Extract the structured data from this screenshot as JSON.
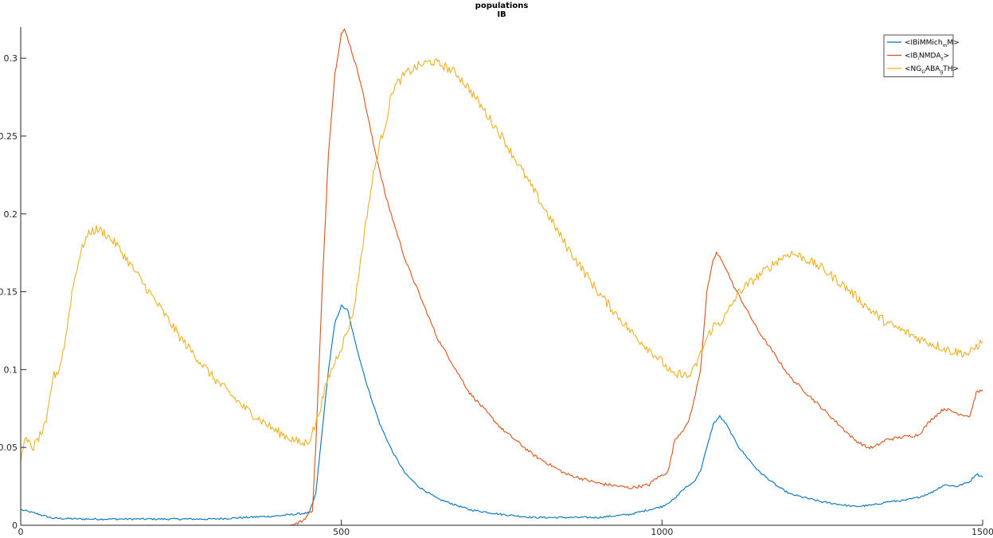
{
  "chart_data": {
    "type": "line",
    "title": [
      "populations",
      "IB"
    ],
    "xlabel": "",
    "ylabel": "",
    "xlim": [
      0,
      1500
    ],
    "ylim": [
      0,
      0.32
    ],
    "xticks": [
      0,
      500,
      1000,
      1500
    ],
    "xtick_labels": [
      "0",
      "500",
      "1000",
      "1500"
    ],
    "yticks": [
      0,
      0.05,
      0.1,
      0.15,
      0.2,
      0.25,
      0.3
    ],
    "ytick_labels": [
      "0",
      "0.05",
      "0.1",
      "0.15",
      "0.2",
      "0.25",
      "0.3"
    ],
    "grid": false,
    "legend_position": "top-right",
    "series": [
      {
        "name": "<IBiMMich_m M>",
        "legend": {
          "pre": "<IBiMMich",
          "sub": "m",
          "post": "M>"
        },
        "color": "#0072BD",
        "noise": 0.0006,
        "points": [
          [
            0,
            0.01
          ],
          [
            20,
            0.008
          ],
          [
            50,
            0.0045
          ],
          [
            100,
            0.004
          ],
          [
            200,
            0.004
          ],
          [
            300,
            0.004
          ],
          [
            400,
            0.006
          ],
          [
            450,
            0.008
          ],
          [
            460,
            0.02
          ],
          [
            470,
            0.06
          ],
          [
            480,
            0.1
          ],
          [
            490,
            0.13
          ],
          [
            500,
            0.141
          ],
          [
            510,
            0.138
          ],
          [
            520,
            0.12
          ],
          [
            540,
            0.09
          ],
          [
            560,
            0.065
          ],
          [
            580,
            0.047
          ],
          [
            600,
            0.033
          ],
          [
            620,
            0.025
          ],
          [
            650,
            0.017
          ],
          [
            700,
            0.01
          ],
          [
            750,
            0.007
          ],
          [
            800,
            0.005
          ],
          [
            850,
            0.005
          ],
          [
            900,
            0.005
          ],
          [
            950,
            0.007
          ],
          [
            1000,
            0.012
          ],
          [
            1020,
            0.017
          ],
          [
            1030,
            0.022
          ],
          [
            1050,
            0.028
          ],
          [
            1060,
            0.035
          ],
          [
            1070,
            0.05
          ],
          [
            1080,
            0.065
          ],
          [
            1090,
            0.07
          ],
          [
            1100,
            0.065
          ],
          [
            1120,
            0.05
          ],
          [
            1150,
            0.035
          ],
          [
            1180,
            0.025
          ],
          [
            1200,
            0.02
          ],
          [
            1250,
            0.015
          ],
          [
            1300,
            0.012
          ],
          [
            1330,
            0.013
          ],
          [
            1350,
            0.015
          ],
          [
            1380,
            0.016
          ],
          [
            1400,
            0.018
          ],
          [
            1420,
            0.021
          ],
          [
            1440,
            0.026
          ],
          [
            1460,
            0.025
          ],
          [
            1480,
            0.028
          ],
          [
            1490,
            0.033
          ],
          [
            1500,
            0.031
          ]
        ]
      },
      {
        "name": "<IB_i NMDA_s>",
        "legend": {
          "pre": "<IB",
          "sub": "i",
          "post": "NMDA",
          "sub2": "s",
          "post2": ">"
        },
        "color": "#D95319",
        "noise": 0.001,
        "points": [
          [
            0,
            0
          ],
          [
            420,
            0
          ],
          [
            430,
            0.001
          ],
          [
            440,
            0.003
          ],
          [
            455,
            0.01
          ],
          [
            460,
            0.05
          ],
          [
            470,
            0.15
          ],
          [
            480,
            0.24
          ],
          [
            490,
            0.29
          ],
          [
            500,
            0.316
          ],
          [
            505,
            0.318
          ],
          [
            510,
            0.313
          ],
          [
            530,
            0.285
          ],
          [
            550,
            0.245
          ],
          [
            570,
            0.21
          ],
          [
            600,
            0.17
          ],
          [
            650,
            0.12
          ],
          [
            700,
            0.085
          ],
          [
            750,
            0.062
          ],
          [
            800,
            0.045
          ],
          [
            850,
            0.033
          ],
          [
            900,
            0.027
          ],
          [
            950,
            0.024
          ],
          [
            980,
            0.026
          ],
          [
            990,
            0.03
          ],
          [
            1000,
            0.032
          ],
          [
            1010,
            0.035
          ],
          [
            1020,
            0.055
          ],
          [
            1030,
            0.06
          ],
          [
            1040,
            0.065
          ],
          [
            1050,
            0.08
          ],
          [
            1060,
            0.1
          ],
          [
            1070,
            0.15
          ],
          [
            1080,
            0.17
          ],
          [
            1085,
            0.175
          ],
          [
            1090,
            0.172
          ],
          [
            1100,
            0.165
          ],
          [
            1110,
            0.155
          ],
          [
            1150,
            0.125
          ],
          [
            1200,
            0.095
          ],
          [
            1250,
            0.075
          ],
          [
            1300,
            0.055
          ],
          [
            1320,
            0.05
          ],
          [
            1330,
            0.05
          ],
          [
            1350,
            0.055
          ],
          [
            1380,
            0.057
          ],
          [
            1400,
            0.058
          ],
          [
            1420,
            0.068
          ],
          [
            1440,
            0.075
          ],
          [
            1460,
            0.072
          ],
          [
            1480,
            0.07
          ],
          [
            1490,
            0.085
          ],
          [
            1500,
            0.087
          ]
        ]
      },
      {
        "name": "<NG_GABA_g TH>",
        "legend": {
          "pre": "<NG",
          "sub": "G",
          "post": "ABA",
          "sub2": "g",
          "post2": "TH>"
        },
        "color": "#EDB120",
        "noise": 0.003,
        "points": [
          [
            0,
            0.04
          ],
          [
            5,
            0.055
          ],
          [
            20,
            0.05
          ],
          [
            40,
            0.065
          ],
          [
            50,
            0.095
          ],
          [
            60,
            0.1
          ],
          [
            70,
            0.12
          ],
          [
            80,
            0.15
          ],
          [
            90,
            0.17
          ],
          [
            100,
            0.183
          ],
          [
            110,
            0.189
          ],
          [
            120,
            0.19
          ],
          [
            130,
            0.188
          ],
          [
            150,
            0.18
          ],
          [
            200,
            0.15
          ],
          [
            250,
            0.12
          ],
          [
            300,
            0.095
          ],
          [
            350,
            0.075
          ],
          [
            400,
            0.06
          ],
          [
            440,
            0.052
          ],
          [
            450,
            0.055
          ],
          [
            460,
            0.065
          ],
          [
            470,
            0.08
          ],
          [
            480,
            0.095
          ],
          [
            490,
            0.105
          ],
          [
            500,
            0.115
          ],
          [
            510,
            0.125
          ],
          [
            520,
            0.14
          ],
          [
            530,
            0.17
          ],
          [
            540,
            0.2
          ],
          [
            550,
            0.225
          ],
          [
            560,
            0.245
          ],
          [
            570,
            0.26
          ],
          [
            580,
            0.28
          ],
          [
            590,
            0.285
          ],
          [
            600,
            0.29
          ],
          [
            620,
            0.295
          ],
          [
            640,
            0.298
          ],
          [
            660,
            0.295
          ],
          [
            680,
            0.29
          ],
          [
            700,
            0.28
          ],
          [
            750,
            0.25
          ],
          [
            800,
            0.215
          ],
          [
            850,
            0.18
          ],
          [
            900,
            0.15
          ],
          [
            950,
            0.125
          ],
          [
            1000,
            0.105
          ],
          [
            1020,
            0.095
          ],
          [
            1030,
            0.098
          ],
          [
            1040,
            0.095
          ],
          [
            1050,
            0.1
          ],
          [
            1060,
            0.11
          ],
          [
            1070,
            0.12
          ],
          [
            1080,
            0.128
          ],
          [
            1090,
            0.13
          ],
          [
            1100,
            0.135
          ],
          [
            1120,
            0.15
          ],
          [
            1150,
            0.16
          ],
          [
            1180,
            0.17
          ],
          [
            1200,
            0.175
          ],
          [
            1220,
            0.172
          ],
          [
            1250,
            0.165
          ],
          [
            1280,
            0.155
          ],
          [
            1300,
            0.148
          ],
          [
            1320,
            0.14
          ],
          [
            1350,
            0.13
          ],
          [
            1400,
            0.12
          ],
          [
            1450,
            0.112
          ],
          [
            1480,
            0.11
          ],
          [
            1490,
            0.115
          ],
          [
            1500,
            0.118
          ]
        ]
      }
    ]
  }
}
